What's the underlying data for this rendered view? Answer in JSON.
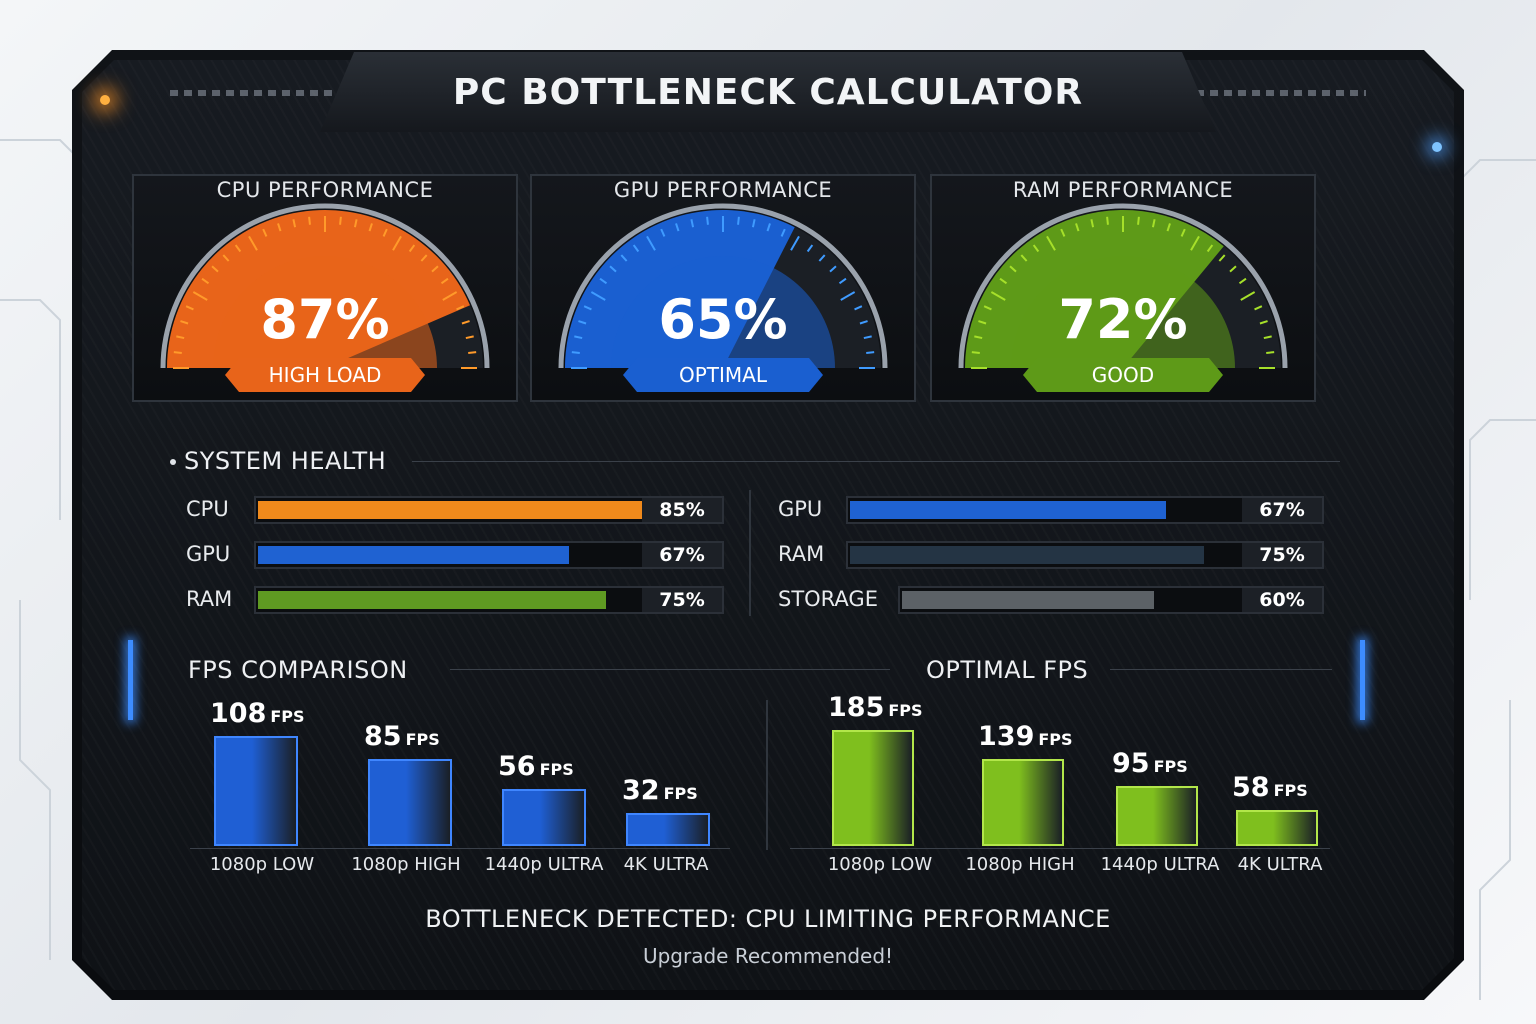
{
  "app_title": "PC BOTTLENECK CALCULATOR",
  "gauges": [
    {
      "label": "CPU PERFORMANCE",
      "value": "87%",
      "percent": 87,
      "status": "HIGH LOAD",
      "color": "#e8641a",
      "glow": "#ff9a2a"
    },
    {
      "label": "GPU PERFORMANCE",
      "value": "65%",
      "percent": 65,
      "status": "OPTIMAL",
      "color": "#1a5fd0",
      "glow": "#3f9bff"
    },
    {
      "label": "RAM PERFORMANCE",
      "value": "72%",
      "percent": 72,
      "status": "GOOD",
      "color": "#5e9a18",
      "glow": "#a6e02a"
    }
  ],
  "system_health": {
    "title": "SYSTEM HEALTH",
    "left": [
      {
        "label": "CPU",
        "value": "85%",
        "percent": 85,
        "color": "#f08a1c"
      },
      {
        "label": "GPU",
        "value": "67%",
        "percent": 67,
        "color": "#1f62d2"
      },
      {
        "label": "RAM",
        "value": "75%",
        "percent": 75,
        "color": "#5f9a22"
      }
    ],
    "right": [
      {
        "label": "GPU",
        "value": "67%",
        "percent": 67,
        "color": "#1f62d2"
      },
      {
        "label": "RAM",
        "value": "75%",
        "percent": 75,
        "color": "#243444"
      },
      {
        "label": "STORAGE",
        "value": "60%",
        "percent": 60,
        "color": "#5c6166"
      }
    ]
  },
  "fps_comparison": {
    "title": "FPS COMPARISON",
    "unit": "FPS",
    "categories": [
      "1080p LOW",
      "1080p HIGH",
      "1440p ULTRA",
      "4K ULTRA"
    ],
    "values": [
      108,
      85,
      56,
      32
    ],
    "color": "#1f5fd4"
  },
  "optimal_fps": {
    "title": "OPTIMAL FPS",
    "unit": "FPS",
    "categories": [
      "1080p LOW",
      "1080p HIGH",
      "1440p ULTRA",
      "4K ULTRA"
    ],
    "values": [
      185,
      139,
      95,
      58
    ],
    "color": "#7fbf1e"
  },
  "chart_data": [
    {
      "type": "bar",
      "title": "FPS COMPARISON",
      "categories": [
        "1080p LOW",
        "1080p HIGH",
        "1440p ULTRA",
        "4K ULTRA"
      ],
      "values": [
        108,
        85,
        56,
        32
      ],
      "ylabel": "FPS"
    },
    {
      "type": "bar",
      "title": "OPTIMAL FPS",
      "categories": [
        "1080p LOW",
        "1080p HIGH",
        "1440p ULTRA",
        "4K ULTRA"
      ],
      "values": [
        185,
        139,
        95,
        58
      ],
      "ylabel": "FPS"
    }
  ],
  "footer": {
    "banner": "BOTTLENECK DETECTED: CPU LIMITING PERFORMANCE",
    "sub": "Upgrade Recommended!"
  }
}
